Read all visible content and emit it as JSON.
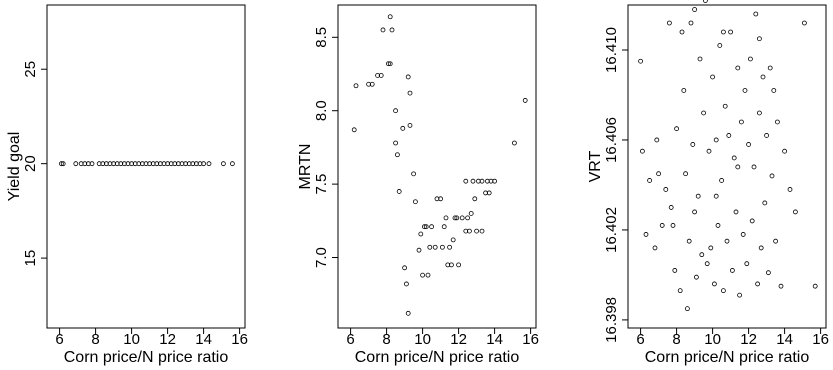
{
  "chart_data": [
    {
      "type": "scatter",
      "xlabel": "Corn price/N price ratio",
      "ylabel": "Yield goal",
      "x": [
        6.1,
        6.2,
        6.9,
        7.2,
        7.4,
        7.6,
        7.8,
        8.2,
        8.4,
        8.6,
        8.8,
        9.0,
        9.2,
        9.4,
        9.6,
        9.8,
        10.0,
        10.2,
        10.4,
        10.6,
        10.8,
        11.0,
        11.2,
        11.4,
        11.6,
        11.8,
        12.0,
        12.2,
        12.4,
        12.6,
        12.8,
        13.0,
        13.2,
        13.4,
        13.6,
        13.8,
        14.0,
        14.3,
        15.1,
        15.6
      ],
      "y": [
        20,
        20,
        20,
        20,
        20,
        20,
        20,
        20,
        20,
        20,
        20,
        20,
        20,
        20,
        20,
        20,
        20,
        20,
        20,
        20,
        20,
        20,
        20,
        20,
        20,
        20,
        20,
        20,
        20,
        20,
        20,
        20,
        20,
        20,
        20,
        20,
        20,
        20,
        20,
        20
      ],
      "xlim": [
        5.3,
        16.3
      ],
      "ylim": [
        11.3,
        28.4
      ],
      "xticks": [
        6,
        8,
        10,
        12,
        14,
        16
      ],
      "yticks": [
        15,
        20,
        25
      ]
    },
    {
      "type": "scatter",
      "xlabel": "Corn price/N price ratio",
      "ylabel": "MRTN",
      "x": [
        6.2,
        6.3,
        7.0,
        7.2,
        7.5,
        7.7,
        7.8,
        8.1,
        8.2,
        8.2,
        8.3,
        8.5,
        8.5,
        8.6,
        8.7,
        8.9,
        9.0,
        9.1,
        9.2,
        9.2,
        9.3,
        9.3,
        9.5,
        9.6,
        9.8,
        9.9,
        10.0,
        10.1,
        10.2,
        10.3,
        10.4,
        10.5,
        10.7,
        10.8,
        11.0,
        11.1,
        11.2,
        11.3,
        11.4,
        11.5,
        11.6,
        11.7,
        11.8,
        11.9,
        12.0,
        12.2,
        12.4,
        12.4,
        12.5,
        12.6,
        12.7,
        12.8,
        12.9,
        13.0,
        13.1,
        13.3,
        13.3,
        13.5,
        13.6,
        13.7,
        13.8,
        14.0,
        15.1,
        15.7
      ],
      "y": [
        7.87,
        8.17,
        8.18,
        8.18,
        8.24,
        8.24,
        8.55,
        8.32,
        8.32,
        8.64,
        8.55,
        8.0,
        7.78,
        7.7,
        7.45,
        7.88,
        6.93,
        6.82,
        8.23,
        6.62,
        8.12,
        7.9,
        7.57,
        7.38,
        7.05,
        7.16,
        6.88,
        7.21,
        7.21,
        6.88,
        7.07,
        7.21,
        7.07,
        7.4,
        7.4,
        7.07,
        7.21,
        7.27,
        6.95,
        7.07,
        6.95,
        7.12,
        7.27,
        7.27,
        6.95,
        7.27,
        7.18,
        7.52,
        7.27,
        7.18,
        7.3,
        7.52,
        7.4,
        7.18,
        7.52,
        7.52,
        7.18,
        7.44,
        7.52,
        7.44,
        7.52,
        7.52,
        7.78,
        8.07
      ],
      "xlim": [
        5.3,
        16.3
      ],
      "ylim": [
        6.52,
        8.72
      ],
      "xticks": [
        6,
        8,
        10,
        12,
        14,
        16
      ],
      "yticks": [
        {
          "value": 7,
          "label": "7.0"
        },
        7.5,
        {
          "value": 8,
          "label": "8.0"
        },
        8.5
      ]
    },
    {
      "type": "scatter",
      "xlabel": "Corn price/N price ratio",
      "ylabel": "VRT",
      "x": [
        6.0,
        6.1,
        6.3,
        6.5,
        6.8,
        6.9,
        7.0,
        7.2,
        7.4,
        7.6,
        7.7,
        7.9,
        8.0,
        8.2,
        8.3,
        8.5,
        8.6,
        8.7,
        8.8,
        8.9,
        9.0,
        9.1,
        9.2,
        9.3,
        9.4,
        9.5,
        9.6,
        9.7,
        9.8,
        9.9,
        10.0,
        10.1,
        10.2,
        10.3,
        10.4,
        10.5,
        10.6,
        10.7,
        10.8,
        10.9,
        11.0,
        11.1,
        11.2,
        11.3,
        11.4,
        11.5,
        11.6,
        11.7,
        11.8,
        11.9,
        12.0,
        12.1,
        12.2,
        12.3,
        12.4,
        12.5,
        12.6,
        12.7,
        12.8,
        12.9,
        13.0,
        13.1,
        13.2,
        13.3,
        13.4,
        13.5,
        13.6,
        13.8,
        14.0,
        14.3,
        14.6,
        15.1,
        15.7,
        8.4,
        9.0,
        10.6,
        11.4,
        12.6,
        7.8,
        10.2
      ],
      "y": [
        16.4095,
        16.4055,
        16.4018,
        16.4042,
        16.4012,
        16.406,
        16.4045,
        16.4022,
        16.4038,
        16.4112,
        16.403,
        16.4002,
        16.4065,
        16.3993,
        16.4108,
        16.4045,
        16.3985,
        16.4015,
        16.4112,
        16.4058,
        16.4118,
        16.3999,
        16.4035,
        16.4096,
        16.4009,
        16.4072,
        16.4122,
        16.4005,
        16.4055,
        16.4012,
        16.4088,
        16.3996,
        16.406,
        16.4022,
        16.4102,
        16.4042,
        16.3993,
        16.4075,
        16.4015,
        16.4062,
        16.4108,
        16.4002,
        16.4052,
        16.4028,
        16.4092,
        16.3991,
        16.4068,
        16.4018,
        16.4082,
        16.4005,
        16.4058,
        16.4096,
        16.4024,
        16.4048,
        16.4116,
        16.3996,
        16.4072,
        16.4012,
        16.4088,
        16.4032,
        16.4062,
        16.4001,
        16.4092,
        16.4044,
        16.4082,
        16.4015,
        16.4068,
        16.3995,
        16.4055,
        16.4038,
        16.4028,
        16.4112,
        16.3995,
        16.4082,
        16.4028,
        16.4108,
        16.4048,
        16.4105,
        16.4022,
        16.4035
      ],
      "xlim": [
        5.3,
        16.3
      ],
      "ylim": [
        16.39764,
        16.412
      ],
      "xticks": [
        6,
        8,
        10,
        12,
        14,
        16
      ],
      "yticks": [
        {
          "value": 16.398,
          "label": "16.398"
        },
        {
          "value": 16.402,
          "label": "16.402"
        },
        {
          "value": 16.406,
          "label": "16.406"
        },
        {
          "value": 16.41,
          "label": "16.410"
        }
      ]
    }
  ]
}
